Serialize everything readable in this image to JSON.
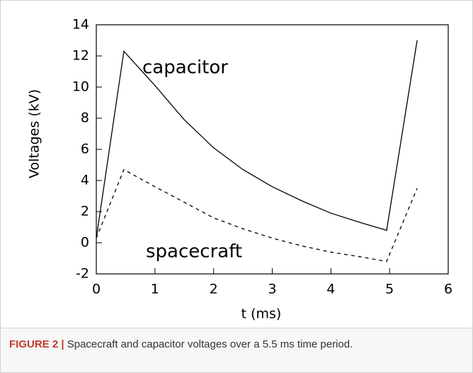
{
  "chart_data": {
    "type": "line",
    "xlabel": "t (ms)",
    "ylabel": "Voltages (kV)",
    "x": [
      0,
      0.47,
      1,
      1.5,
      2,
      2.5,
      3,
      3.5,
      4,
      4.5,
      4.95,
      5.47
    ],
    "series": [
      {
        "name": "capacitor",
        "color": "#000000",
        "line_style": "solid",
        "values": [
          0.3,
          12.3,
          10.1,
          7.9,
          6.1,
          4.7,
          3.6,
          2.7,
          1.9,
          1.3,
          0.8,
          13.0
        ]
      },
      {
        "name": "spacecraft",
        "color": "#000000",
        "line_style": "dashed",
        "values": [
          0.3,
          4.7,
          3.6,
          2.6,
          1.6,
          0.9,
          0.3,
          -0.2,
          -0.6,
          -0.9,
          -1.2,
          3.5
        ]
      }
    ],
    "xlim": [
      0,
      6
    ],
    "xticks": [
      0,
      1,
      2,
      3,
      4,
      5,
      6
    ],
    "ylim": [
      -2,
      14
    ],
    "yticks": [
      -2,
      0,
      2,
      4,
      6,
      8,
      10,
      12,
      14
    ],
    "grid": false
  },
  "caption": {
    "label": "FIGURE 2 |",
    "text": "Spacecraft and capacitor voltages over a 5.5 ms time period."
  }
}
